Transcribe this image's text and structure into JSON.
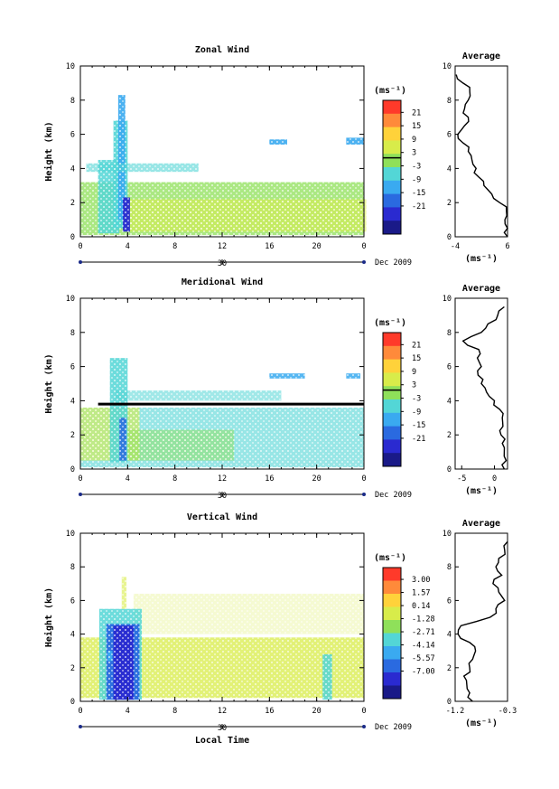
{
  "chart_data": [
    {
      "type": "heatmap",
      "title": "Zonal Wind",
      "ylabel": "Height (km)",
      "xticks": [
        "0",
        "4",
        "8",
        "12",
        "16",
        "20",
        "0"
      ],
      "yticks": [
        "0",
        "2",
        "4",
        "6",
        "8",
        "10"
      ],
      "date_label": "30",
      "date_right": "Dec 2009",
      "xlim": [
        0,
        24
      ],
      "ylim": [
        0,
        10
      ],
      "colorbar": {
        "unit": "(ms⁻¹)",
        "ticks": [
          "21",
          "15",
          "9",
          "3",
          "-3",
          "-9",
          "-15",
          "-21"
        ],
        "colors": [
          "#ff3a2a",
          "#ff8a3a",
          "#ffd23a",
          "#d8ec4a",
          "#8fe05a",
          "#53d6d6",
          "#3aaaf0",
          "#2a6ae0",
          "#2a2ad0",
          "#1a1a88"
        ]
      },
      "profile": {
        "title": "Average",
        "xticks": [
          "-4",
          "6"
        ],
        "xlim": [
          -4,
          6
        ],
        "xunit": "(ms⁻¹)",
        "yticks": [
          "0",
          "2",
          "4",
          "6",
          "8",
          "10"
        ],
        "heights": [
          0,
          0.5,
          1,
          1.5,
          2,
          2.5,
          3,
          3.5,
          4,
          4.5,
          5,
          5.5,
          6,
          6.5,
          7,
          7.5,
          8,
          8.5,
          9,
          9.5
        ],
        "values": [
          6,
          6,
          5.5,
          5.8,
          4.5,
          3,
          1.5,
          0.5,
          0,
          -0.8,
          -1.5,
          -2.5,
          -3.5,
          -2.2,
          -1.5,
          -2.2,
          -1.5,
          -1.2,
          -2.5,
          -3.8
        ]
      }
    },
    {
      "type": "heatmap",
      "title": "Meridional Wind",
      "ylabel": "Height (km)",
      "xticks": [
        "0",
        "4",
        "8",
        "12",
        "16",
        "20",
        "0"
      ],
      "yticks": [
        "0",
        "2",
        "4",
        "6",
        "8",
        "10"
      ],
      "date_label": "30",
      "date_right": "Dec 2009",
      "xlim": [
        0,
        24
      ],
      "ylim": [
        0,
        10
      ],
      "colorbar": {
        "unit": "(ms⁻¹)",
        "ticks": [
          "21",
          "15",
          "9",
          "3",
          "-3",
          "-9",
          "-15",
          "-21"
        ],
        "colors": [
          "#ff3a2a",
          "#ff8a3a",
          "#ffd23a",
          "#d8ec4a",
          "#8fe05a",
          "#53d6d6",
          "#3aaaf0",
          "#2a6ae0",
          "#2a2ad0",
          "#1a1a88"
        ]
      },
      "profile": {
        "title": "Average",
        "xticks": [
          "-5",
          "0"
        ],
        "xlim": [
          -6,
          2
        ],
        "xunit": "(ms⁻¹)",
        "yticks": [
          "0",
          "2",
          "4",
          "6",
          "8",
          "10"
        ],
        "heights": [
          0,
          0.5,
          1,
          1.5,
          2,
          2.5,
          3,
          3.5,
          4,
          4.5,
          5,
          5.5,
          6,
          6.5,
          7,
          7.5,
          8,
          8.5,
          9,
          9.5
        ],
        "values": [
          1.5,
          1.8,
          1.5,
          1.2,
          1,
          1.3,
          1.2,
          0.8,
          0,
          -1.2,
          -2,
          -2.5,
          -2,
          -2.6,
          -2.4,
          -4.8,
          -2,
          -1,
          0.5,
          1.5
        ]
      }
    },
    {
      "type": "heatmap",
      "title": "Vertical Wind",
      "ylabel": "Height (km)",
      "xlabel": "Local Time",
      "xticks": [
        "0",
        "4",
        "8",
        "12",
        "16",
        "20",
        "0"
      ],
      "yticks": [
        "0",
        "2",
        "4",
        "6",
        "8",
        "10"
      ],
      "date_label": "30",
      "date_right": "Dec 2009",
      "xlim": [
        0,
        24
      ],
      "ylim": [
        0,
        10
      ],
      "colorbar": {
        "unit": "(ms⁻¹)",
        "ticks": [
          "3.00",
          "1.57",
          "0.14",
          "-1.28",
          "-2.71",
          "-4.14",
          "-5.57",
          "-7.00"
        ],
        "colors": [
          "#ff3a2a",
          "#ff8a3a",
          "#ffd23a",
          "#d8ec4a",
          "#8fe05a",
          "#53d6d6",
          "#3aaaf0",
          "#2a6ae0",
          "#2a2ad0",
          "#1a1a88"
        ]
      },
      "profile": {
        "title": "Average",
        "xticks": [
          "-1.2",
          "-0.3"
        ],
        "xlim": [
          -1.2,
          -0.3
        ],
        "xunit": "(ms⁻¹)",
        "yticks": [
          "0",
          "2",
          "4",
          "6",
          "8",
          "10"
        ],
        "heights": [
          0,
          0.5,
          1,
          1.5,
          2,
          2.5,
          3,
          3.5,
          4,
          4.5,
          5,
          5.5,
          6,
          6.5,
          7,
          7.5,
          8,
          8.5,
          9,
          9.5
        ],
        "values": [
          -0.9,
          -0.95,
          -1.0,
          -1.05,
          -0.95,
          -0.9,
          -0.85,
          -0.95,
          -1.15,
          -1.1,
          -0.6,
          -0.5,
          -0.35,
          -0.45,
          -0.55,
          -0.4,
          -0.5,
          -0.45,
          -0.35,
          -0.3
        ]
      }
    }
  ]
}
